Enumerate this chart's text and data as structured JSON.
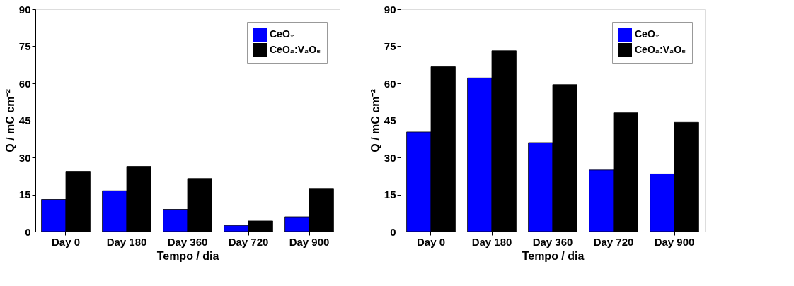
{
  "chart_data": [
    {
      "type": "bar",
      "xlabel": "Tempo / dia",
      "ylabel": "Q / mC cm⁻²",
      "categories": [
        "Day 0",
        "Day 180",
        "Day 360",
        "Day 720",
        "Day 900"
      ],
      "ylim": [
        0,
        90
      ],
      "yticks": [
        0,
        15,
        30,
        45,
        60,
        75,
        90
      ],
      "grid": false,
      "legend": "top right",
      "series": [
        {
          "name": "CeO₂",
          "color": "#0000ff",
          "values": [
            13.0,
            16.5,
            9.0,
            2.5,
            6.0
          ]
        },
        {
          "name": "CeO₂:V₂O₅",
          "color": "#000000",
          "values": [
            24.4,
            26.4,
            21.5,
            4.3,
            17.5
          ]
        }
      ]
    },
    {
      "type": "bar",
      "xlabel": "Tempo / dia",
      "ylabel": "Q / mC cm⁻²",
      "categories": [
        "Day 0",
        "Day 180",
        "Day 360",
        "Day 720",
        "Day 900"
      ],
      "ylim": [
        0,
        90
      ],
      "yticks": [
        0,
        15,
        30,
        45,
        60,
        75,
        90
      ],
      "grid": false,
      "legend": "top right",
      "series": [
        {
          "name": "CeO₂",
          "color": "#0000ff",
          "values": [
            40.3,
            62.2,
            36.0,
            24.9,
            23.3
          ]
        },
        {
          "name": "CeO₂:V₂O₅",
          "color": "#000000",
          "values": [
            66.7,
            73.2,
            59.5,
            48.1,
            44.2
          ]
        }
      ]
    }
  ]
}
